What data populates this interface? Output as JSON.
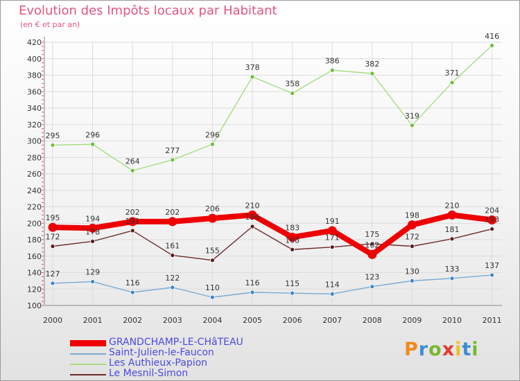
{
  "title": "Evolution des Impôts locaux par Habitant",
  "subtitle": "(en € et par an)",
  "logo": {
    "text": "Proxiti",
    "letter_colors": [
      "#f08a1c",
      "#3a8ed8",
      "#7ab62e",
      "#e8392f",
      "#f0c020",
      "#3a8ed8",
      "#7ab62e"
    ]
  },
  "chart_data": {
    "type": "line",
    "x": [
      "2000",
      "2001",
      "2002",
      "2003",
      "2004",
      "2005",
      "2006",
      "2007",
      "2008",
      "2009",
      "2010",
      "2011"
    ],
    "ylim": [
      100,
      420
    ],
    "yticks": [
      100,
      120,
      140,
      160,
      180,
      200,
      220,
      240,
      260,
      280,
      300,
      320,
      340,
      360,
      380,
      400,
      420
    ],
    "grid": true,
    "legend_position": "bottom-left",
    "series": [
      {
        "name": "GRANDCHAMP-LE-CHâTEAU",
        "color": "#ee0000",
        "marker": "#ee0000",
        "thick": true,
        "values": [
          195,
          194,
          202,
          202,
          206,
          210,
          183,
          191,
          162,
          198,
          210,
          204
        ],
        "labels": [
          "195",
          "194",
          "202",
          "202",
          "206",
          "210",
          "183",
          "191",
          "162",
          "198",
          "210",
          "204"
        ]
      },
      {
        "name": "Saint-Julien-le-Faucon",
        "color": "#7aaad4",
        "marker": "#3d86c8",
        "thick": false,
        "values": [
          127,
          129,
          116,
          122,
          110,
          116,
          115,
          114,
          123,
          130,
          133,
          137
        ],
        "labels": [
          "127",
          "129",
          "116",
          "122",
          "110",
          "116",
          "115",
          "114",
          "123",
          "130",
          "133",
          "137"
        ]
      },
      {
        "name": "Les Authieux-Papion",
        "color": "#a6dc82",
        "marker": "#6cbf3a",
        "thick": false,
        "values": [
          295,
          296,
          264,
          277,
          296,
          378,
          358,
          386,
          382,
          319,
          371,
          416
        ],
        "labels": [
          "295",
          "296",
          "264",
          "277",
          "296",
          "378",
          "358",
          "386",
          "382",
          "319",
          "371",
          "416"
        ]
      },
      {
        "name": "Le Mesnil-Simon",
        "color": "#6a2a2a",
        "marker": "#5a1a1a",
        "thick": false,
        "values": [
          172,
          178,
          191,
          161,
          155,
          196,
          168,
          171,
          175,
          172,
          181,
          193
        ],
        "labels": [
          "172",
          "178",
          "191",
          "161",
          "155",
          "196",
          "168",
          "171",
          "175",
          "172",
          "181",
          "193"
        ]
      }
    ]
  }
}
